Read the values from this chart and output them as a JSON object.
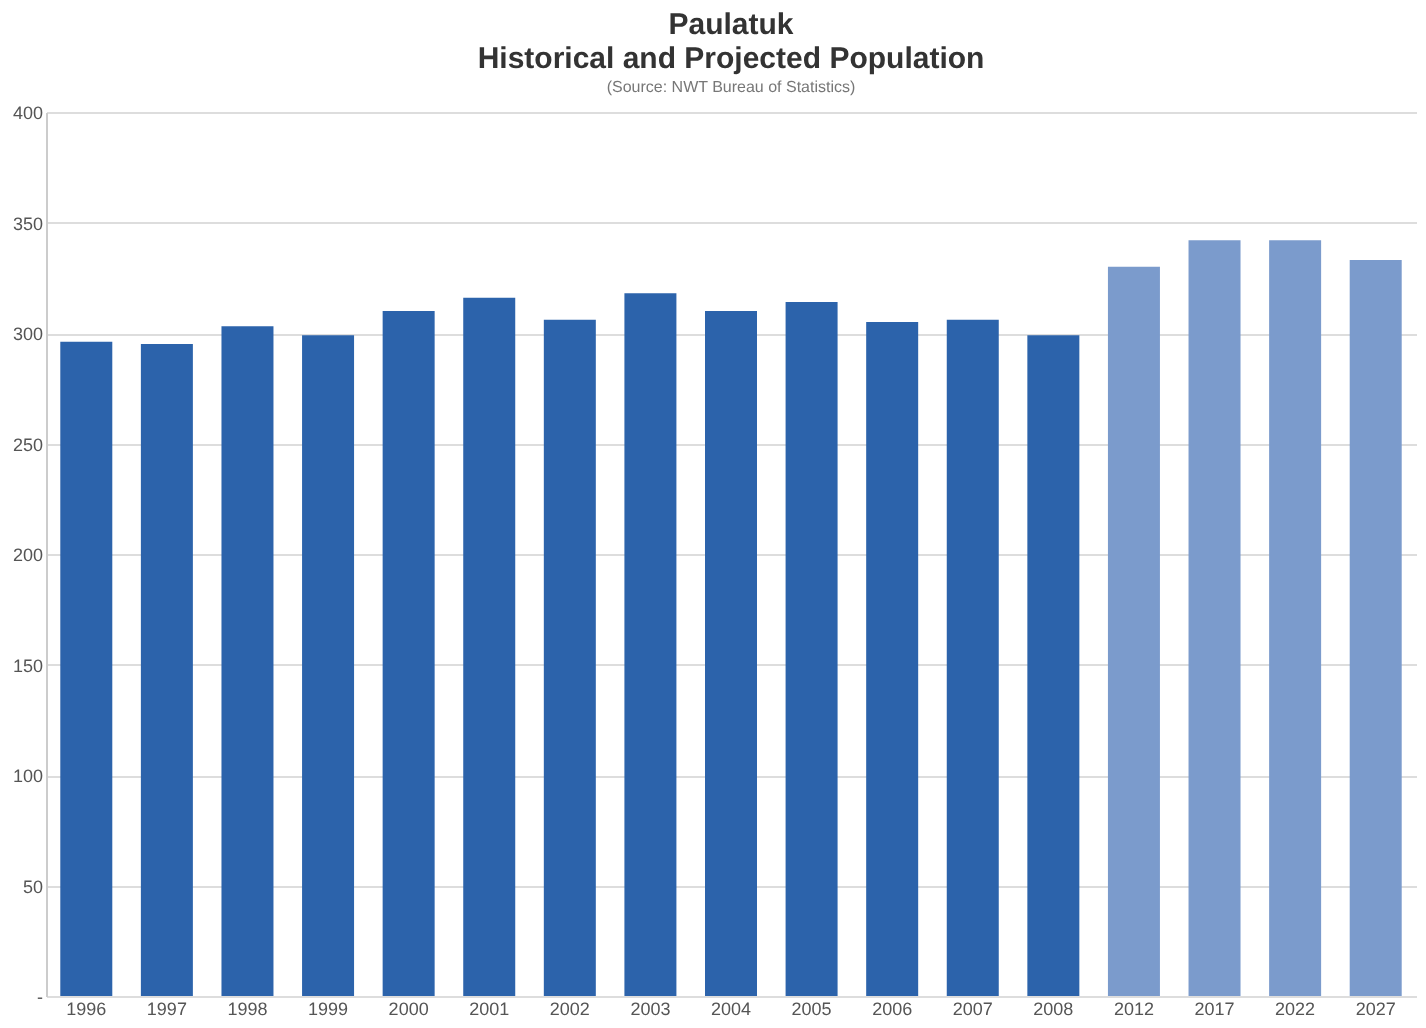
{
  "chart_data": {
    "type": "bar",
    "title": "Paulatuk\nHistorical and Projected Population",
    "subtitle": "(Source: NWT Bureau of Statistics)",
    "categories": [
      "1996",
      "1997",
      "1998",
      "1999",
      "2000",
      "2001",
      "2002",
      "2003",
      "2004",
      "2005",
      "2006",
      "2007",
      "2008",
      "2012",
      "2017",
      "2022",
      "2027"
    ],
    "values": [
      296,
      295,
      303,
      299,
      310,
      316,
      306,
      318,
      310,
      314,
      305,
      306,
      299,
      330,
      342,
      342,
      333
    ],
    "colors": [
      "#2c63ab",
      "#2c63ab",
      "#2c63ab",
      "#2c63ab",
      "#2c63ab",
      "#2c63ab",
      "#2c63ab",
      "#2c63ab",
      "#2c63ab",
      "#2c63ab",
      "#2c63ab",
      "#2c63ab",
      "#2c63ab",
      "#7b9bcc",
      "#7b9bcc",
      "#7b9bcc",
      "#7b9bcc"
    ],
    "ylim": [
      0,
      400
    ],
    "yticks": [
      {
        "value": 0,
        "label": "-"
      },
      50,
      100,
      150,
      200,
      250,
      300,
      350,
      400
    ],
    "grid": "y"
  }
}
